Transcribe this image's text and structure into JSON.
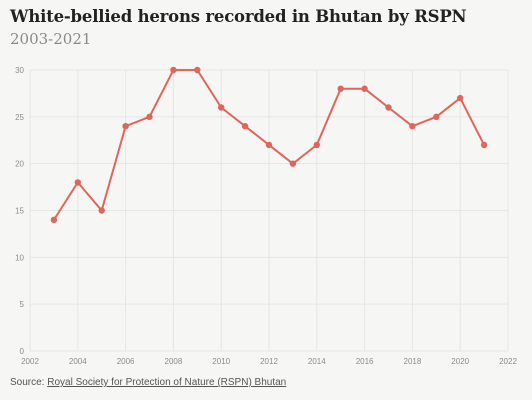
{
  "title": "White-bellied herons recorded in Bhutan by RSPN",
  "subtitle": "2003-2021",
  "source": {
    "prefix": "Source:",
    "link_text": "Royal Society for Protection of Nature (RSPN) Bhutan"
  },
  "colors": {
    "line": "#e0665a",
    "grid": "#e6e6e6",
    "axis_text": "#8c8c8c",
    "background": "#f6f6f4"
  },
  "chart_data": {
    "type": "line",
    "title": "White-bellied herons recorded in Bhutan by RSPN",
    "subtitle": "2003-2021",
    "xlabel": "",
    "ylabel": "",
    "xlim": [
      2002,
      2022
    ],
    "ylim": [
      0,
      30
    ],
    "x_ticks": [
      "2002",
      "2004",
      "2006",
      "2008",
      "2010",
      "2012",
      "2014",
      "2016",
      "2018",
      "2020",
      "2022"
    ],
    "y_ticks": [
      "0",
      "5",
      "10",
      "15",
      "20",
      "25",
      "30"
    ],
    "grid": true,
    "legend": "none",
    "series": [
      {
        "x": [
          2003,
          2004,
          2005,
          2006,
          2007,
          2008,
          2009,
          2010,
          2011,
          2012,
          2013,
          2014,
          2015,
          2016,
          2017,
          2018,
          2019,
          2020,
          2021
        ],
        "values": [
          14,
          18,
          15,
          24,
          25,
          30,
          30,
          26,
          24,
          22,
          20,
          22,
          28,
          28,
          26,
          24,
          25,
          27,
          22
        ]
      }
    ]
  }
}
